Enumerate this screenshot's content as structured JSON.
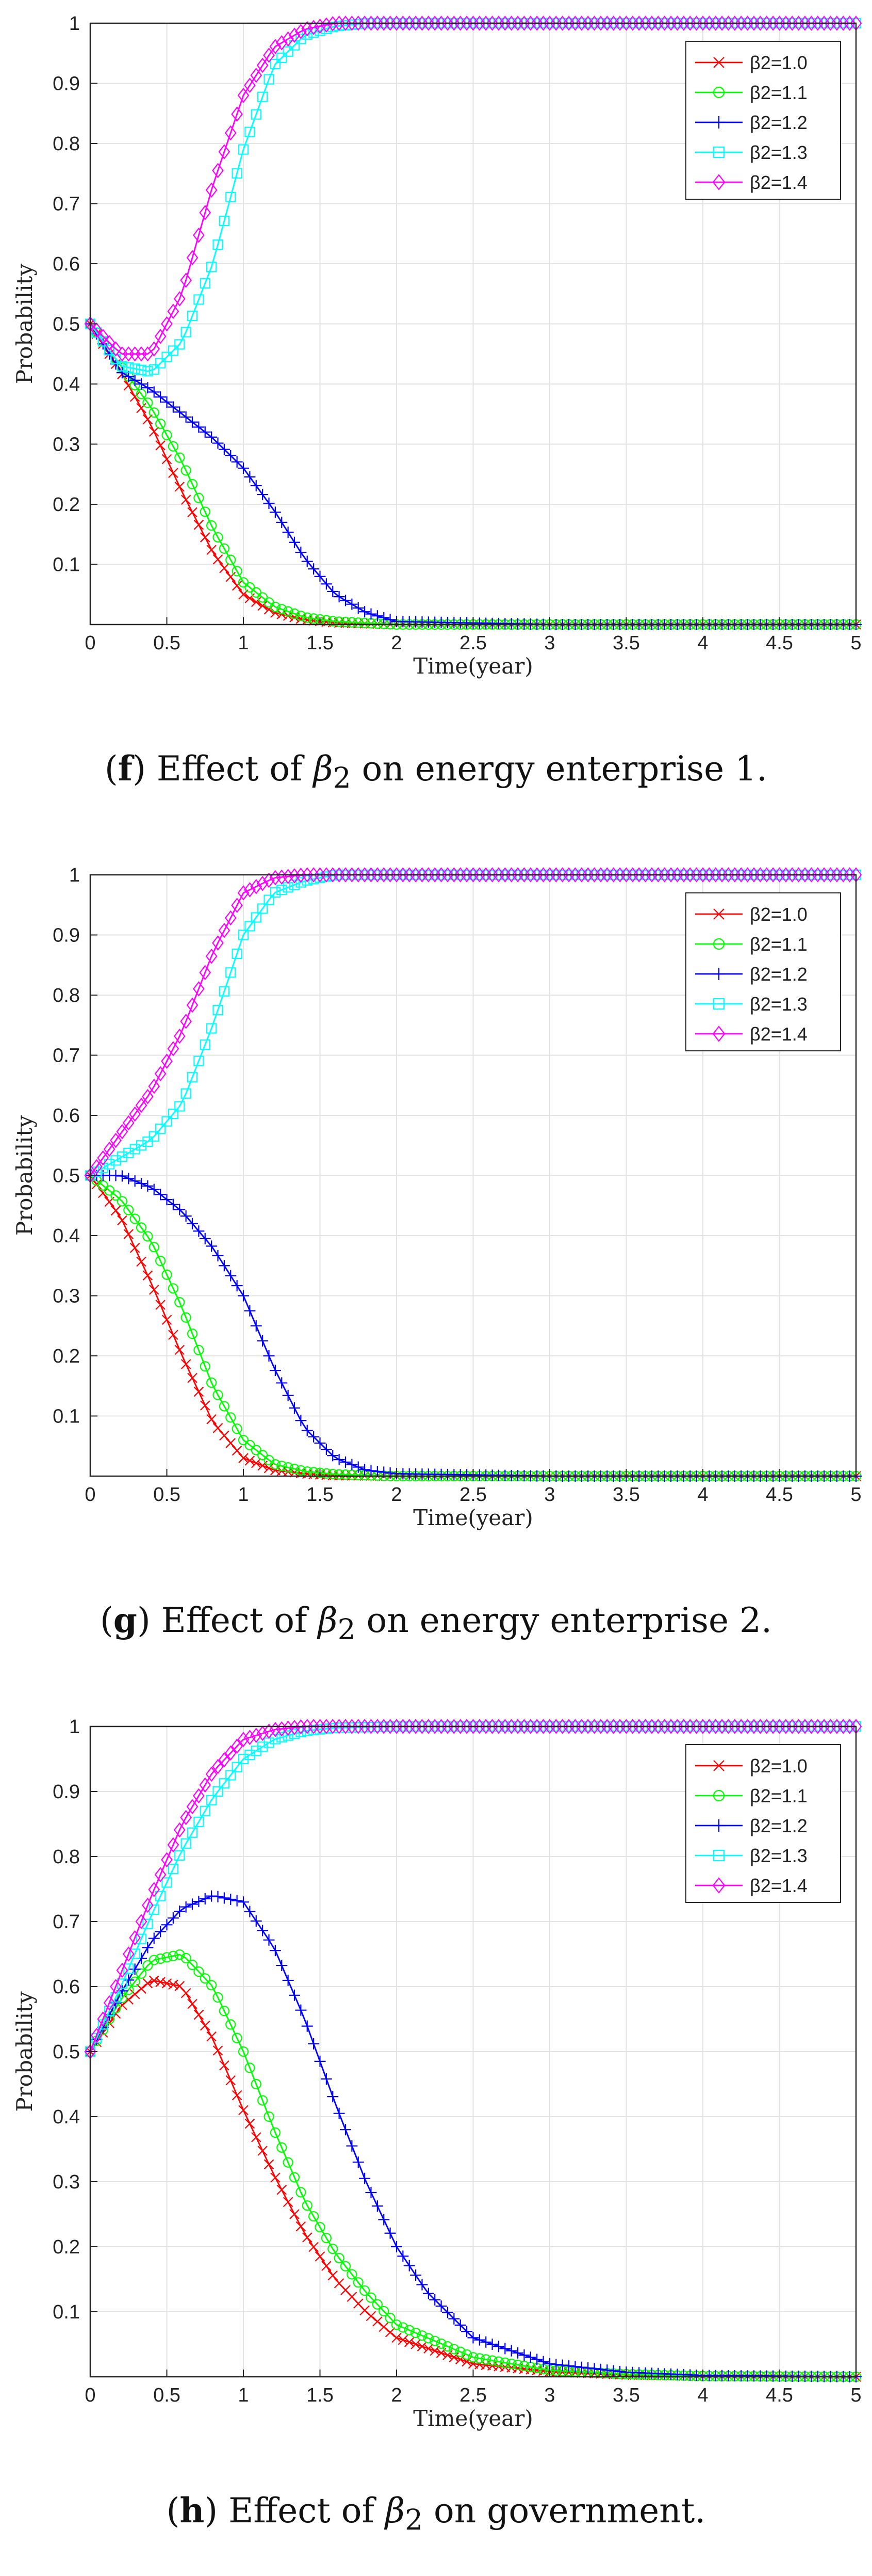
{
  "chart_data": [
    {
      "id": "f",
      "type": "line",
      "caption_letter": "f",
      "caption_prefix": "Effect of ",
      "caption_symbol": "β",
      "caption_sub": "2",
      "caption_suffix": " on energy enterprise 1.",
      "xlabel": "Time(year)",
      "ylabel": "Probability",
      "xlim": [
        0,
        5
      ],
      "ylim": [
        0,
        1
      ],
      "xticks": [
        0,
        0.5,
        1,
        1.5,
        2,
        2.5,
        3,
        3.5,
        4,
        4.5,
        5
      ],
      "xtick_labels": [
        "0",
        "0.5",
        "1",
        "1.5",
        "2",
        "2.5",
        "3",
        "3.5",
        "4",
        "4.5",
        "5"
      ],
      "yticks": [
        0.1,
        0.2,
        0.3,
        0.4,
        0.5,
        0.6,
        0.7,
        0.8,
        0.9,
        1
      ],
      "ytick_labels": [
        "0.1",
        "0.2",
        "0.3",
        "0.4",
        "0.5",
        "0.6",
        "0.7",
        "0.8",
        "0.9",
        "1"
      ],
      "grid": true,
      "legend_position": "top-right",
      "series": [
        {
          "name": "β2=1.0",
          "color": "#ff0000",
          "marker": "x",
          "x": [
            0,
            0.2,
            0.4,
            0.6,
            0.8,
            1.0,
            1.2,
            1.4,
            1.6,
            2.0,
            3.0,
            4.0,
            5.0
          ],
          "y": [
            0.5,
            0.42,
            0.33,
            0.22,
            0.12,
            0.05,
            0.02,
            0.008,
            0.003,
            0,
            0,
            0,
            0
          ]
        },
        {
          "name": "β2=1.1",
          "color": "#00ff00",
          "marker": "o",
          "x": [
            0,
            0.2,
            0.4,
            0.6,
            0.8,
            1.0,
            1.2,
            1.4,
            1.6,
            2.0,
            3.0,
            4.0,
            5.0
          ],
          "y": [
            0.5,
            0.43,
            0.36,
            0.27,
            0.16,
            0.07,
            0.03,
            0.012,
            0.005,
            0,
            0,
            0,
            0
          ]
        },
        {
          "name": "β2=1.2",
          "color": "#0000ff",
          "marker": "+",
          "x": [
            0,
            0.2,
            0.4,
            0.6,
            0.8,
            1.0,
            1.2,
            1.4,
            1.6,
            1.8,
            2.0,
            3.0,
            4.0,
            5.0
          ],
          "y": [
            0.5,
            0.42,
            0.39,
            0.35,
            0.31,
            0.26,
            0.19,
            0.11,
            0.05,
            0.02,
            0.005,
            0,
            0,
            0
          ]
        },
        {
          "name": "β2=1.3",
          "color": "#00ffff",
          "marker": "s",
          "x": [
            0,
            0.2,
            0.4,
            0.6,
            0.8,
            1.0,
            1.2,
            1.4,
            1.6,
            1.8,
            2.0,
            3.0,
            4.0,
            5.0
          ],
          "y": [
            0.5,
            0.43,
            0.42,
            0.47,
            0.6,
            0.79,
            0.93,
            0.98,
            0.995,
            1,
            1,
            1,
            1,
            1
          ]
        },
        {
          "name": "β2=1.4",
          "color": "#ff00ff",
          "marker": "d",
          "x": [
            0,
            0.2,
            0.4,
            0.6,
            0.8,
            1.0,
            1.2,
            1.4,
            1.6,
            1.8,
            2.0,
            3.0,
            4.0,
            5.0
          ],
          "y": [
            0.5,
            0.45,
            0.45,
            0.55,
            0.73,
            0.88,
            0.96,
            0.99,
            1,
            1,
            1,
            1,
            1,
            1
          ]
        }
      ]
    },
    {
      "id": "g",
      "type": "line",
      "caption_letter": "g",
      "caption_prefix": "Effect of ",
      "caption_symbol": "β",
      "caption_sub": "2",
      "caption_suffix": " on energy enterprise 2.",
      "xlabel": "Time(year)",
      "ylabel": "Probability",
      "xlim": [
        0,
        5
      ],
      "ylim": [
        0,
        1
      ],
      "xticks": [
        0,
        0.5,
        1,
        1.5,
        2,
        2.5,
        3,
        3.5,
        4,
        4.5,
        5
      ],
      "xtick_labels": [
        "0",
        "0.5",
        "1",
        "1.5",
        "2",
        "2.5",
        "3",
        "3.5",
        "4",
        "4.5",
        "5"
      ],
      "yticks": [
        0.1,
        0.2,
        0.3,
        0.4,
        0.5,
        0.6,
        0.7,
        0.8,
        0.9,
        1
      ],
      "ytick_labels": [
        "0.1",
        "0.2",
        "0.3",
        "0.4",
        "0.5",
        "0.6",
        "0.7",
        "0.8",
        "0.9",
        "1"
      ],
      "grid": true,
      "legend_position": "top-right",
      "series": [
        {
          "name": "β2=1.0",
          "color": "#ff0000",
          "marker": "x",
          "x": [
            0,
            0.2,
            0.4,
            0.6,
            0.8,
            1.0,
            1.2,
            1.4,
            1.6,
            2.0,
            3.0,
            4.0,
            5.0
          ],
          "y": [
            0.5,
            0.43,
            0.32,
            0.2,
            0.09,
            0.03,
            0.01,
            0.004,
            0.001,
            0,
            0,
            0,
            0
          ]
        },
        {
          "name": "β2=1.1",
          "color": "#00ff00",
          "marker": "o",
          "x": [
            0,
            0.2,
            0.4,
            0.6,
            0.8,
            1.0,
            1.2,
            1.4,
            1.6,
            2.0,
            3.0,
            4.0,
            5.0
          ],
          "y": [
            0.5,
            0.46,
            0.39,
            0.28,
            0.15,
            0.06,
            0.02,
            0.008,
            0.003,
            0,
            0,
            0,
            0
          ]
        },
        {
          "name": "β2=1.2",
          "color": "#0000ff",
          "marker": "+",
          "x": [
            0,
            0.2,
            0.4,
            0.6,
            0.8,
            1.0,
            1.2,
            1.4,
            1.6,
            1.8,
            2.0,
            3.0,
            4.0,
            5.0
          ],
          "y": [
            0.5,
            0.5,
            0.48,
            0.44,
            0.38,
            0.3,
            0.18,
            0.08,
            0.03,
            0.01,
            0.004,
            0,
            0,
            0
          ]
        },
        {
          "name": "β2=1.3",
          "color": "#00ffff",
          "marker": "s",
          "x": [
            0,
            0.2,
            0.4,
            0.6,
            0.8,
            1.0,
            1.2,
            1.4,
            1.6,
            2.0,
            3.0,
            4.0,
            5.0
          ],
          "y": [
            0.5,
            0.53,
            0.56,
            0.62,
            0.75,
            0.9,
            0.97,
            0.99,
            1,
            1,
            1,
            1,
            1
          ]
        },
        {
          "name": "β2=1.4",
          "color": "#ff00ff",
          "marker": "d",
          "x": [
            0,
            0.2,
            0.4,
            0.6,
            0.8,
            1.0,
            1.2,
            1.4,
            1.6,
            2.0,
            3.0,
            4.0,
            5.0
          ],
          "y": [
            0.5,
            0.57,
            0.64,
            0.74,
            0.87,
            0.97,
            0.995,
            1,
            1,
            1,
            1,
            1,
            1
          ]
        }
      ]
    },
    {
      "id": "h",
      "type": "line",
      "caption_letter": "h",
      "caption_prefix": "Effect of ",
      "caption_symbol": "β",
      "caption_sub": "2",
      "caption_suffix": " on government.",
      "xlabel": "Time(year)",
      "ylabel": "Probability",
      "xlim": [
        0,
        5
      ],
      "ylim": [
        0,
        1
      ],
      "xticks": [
        0,
        0.5,
        1,
        1.5,
        2,
        2.5,
        3,
        3.5,
        4,
        4.5,
        5
      ],
      "xtick_labels": [
        "0",
        "0.5",
        "1",
        "1.5",
        "2",
        "2.5",
        "3",
        "3.5",
        "4",
        "4.5",
        "5"
      ],
      "yticks": [
        0.1,
        0.2,
        0.3,
        0.4,
        0.5,
        0.6,
        0.7,
        0.8,
        0.9,
        1
      ],
      "ytick_labels": [
        "0.1",
        "0.2",
        "0.3",
        "0.4",
        "0.5",
        "0.6",
        "0.7",
        "0.8",
        "0.9",
        "1"
      ],
      "grid": true,
      "legend_position": "top-right",
      "series": [
        {
          "name": "β2=1.0",
          "color": "#ff0000",
          "marker": "x",
          "x": [
            0,
            0.2,
            0.4,
            0.6,
            0.8,
            1.0,
            1.2,
            1.4,
            1.6,
            1.8,
            2.0,
            2.5,
            3.0,
            3.5,
            4.0,
            5.0
          ],
          "y": [
            0.5,
            0.57,
            0.61,
            0.6,
            0.52,
            0.41,
            0.31,
            0.22,
            0.15,
            0.1,
            0.06,
            0.02,
            0.008,
            0.003,
            0.001,
            0
          ]
        },
        {
          "name": "β2=1.1",
          "color": "#00ff00",
          "marker": "o",
          "x": [
            0,
            0.2,
            0.4,
            0.6,
            0.8,
            1.0,
            1.2,
            1.4,
            1.6,
            1.8,
            2.0,
            2.5,
            3.0,
            3.5,
            4.0,
            5.0
          ],
          "y": [
            0.5,
            0.58,
            0.64,
            0.65,
            0.6,
            0.5,
            0.38,
            0.27,
            0.19,
            0.13,
            0.08,
            0.03,
            0.01,
            0.004,
            0.001,
            0
          ]
        },
        {
          "name": "β2=1.2",
          "color": "#0000ff",
          "marker": "+",
          "x": [
            0,
            0.2,
            0.4,
            0.6,
            0.8,
            1.0,
            1.2,
            1.4,
            1.6,
            1.8,
            2.0,
            2.2,
            2.5,
            3.0,
            3.5,
            4.0,
            5.0
          ],
          "y": [
            0.5,
            0.59,
            0.67,
            0.72,
            0.74,
            0.73,
            0.66,
            0.55,
            0.42,
            0.3,
            0.2,
            0.13,
            0.06,
            0.02,
            0.007,
            0.002,
            0
          ]
        },
        {
          "name": "β2=1.3",
          "color": "#00ffff",
          "marker": "s",
          "x": [
            0,
            0.2,
            0.4,
            0.6,
            0.8,
            1.0,
            1.2,
            1.4,
            1.6,
            2.0,
            3.0,
            4.0,
            5.0
          ],
          "y": [
            0.5,
            0.6,
            0.71,
            0.81,
            0.89,
            0.95,
            0.98,
            0.993,
            0.998,
            1,
            1,
            1,
            1
          ]
        },
        {
          "name": "β2=1.4",
          "color": "#ff00ff",
          "marker": "d",
          "x": [
            0,
            0.2,
            0.4,
            0.6,
            0.8,
            1.0,
            1.2,
            1.4,
            1.6,
            2.0,
            3.0,
            4.0,
            5.0
          ],
          "y": [
            0.5,
            0.62,
            0.74,
            0.85,
            0.93,
            0.98,
            0.995,
            1,
            1,
            1,
            1,
            1,
            1
          ]
        }
      ]
    }
  ]
}
